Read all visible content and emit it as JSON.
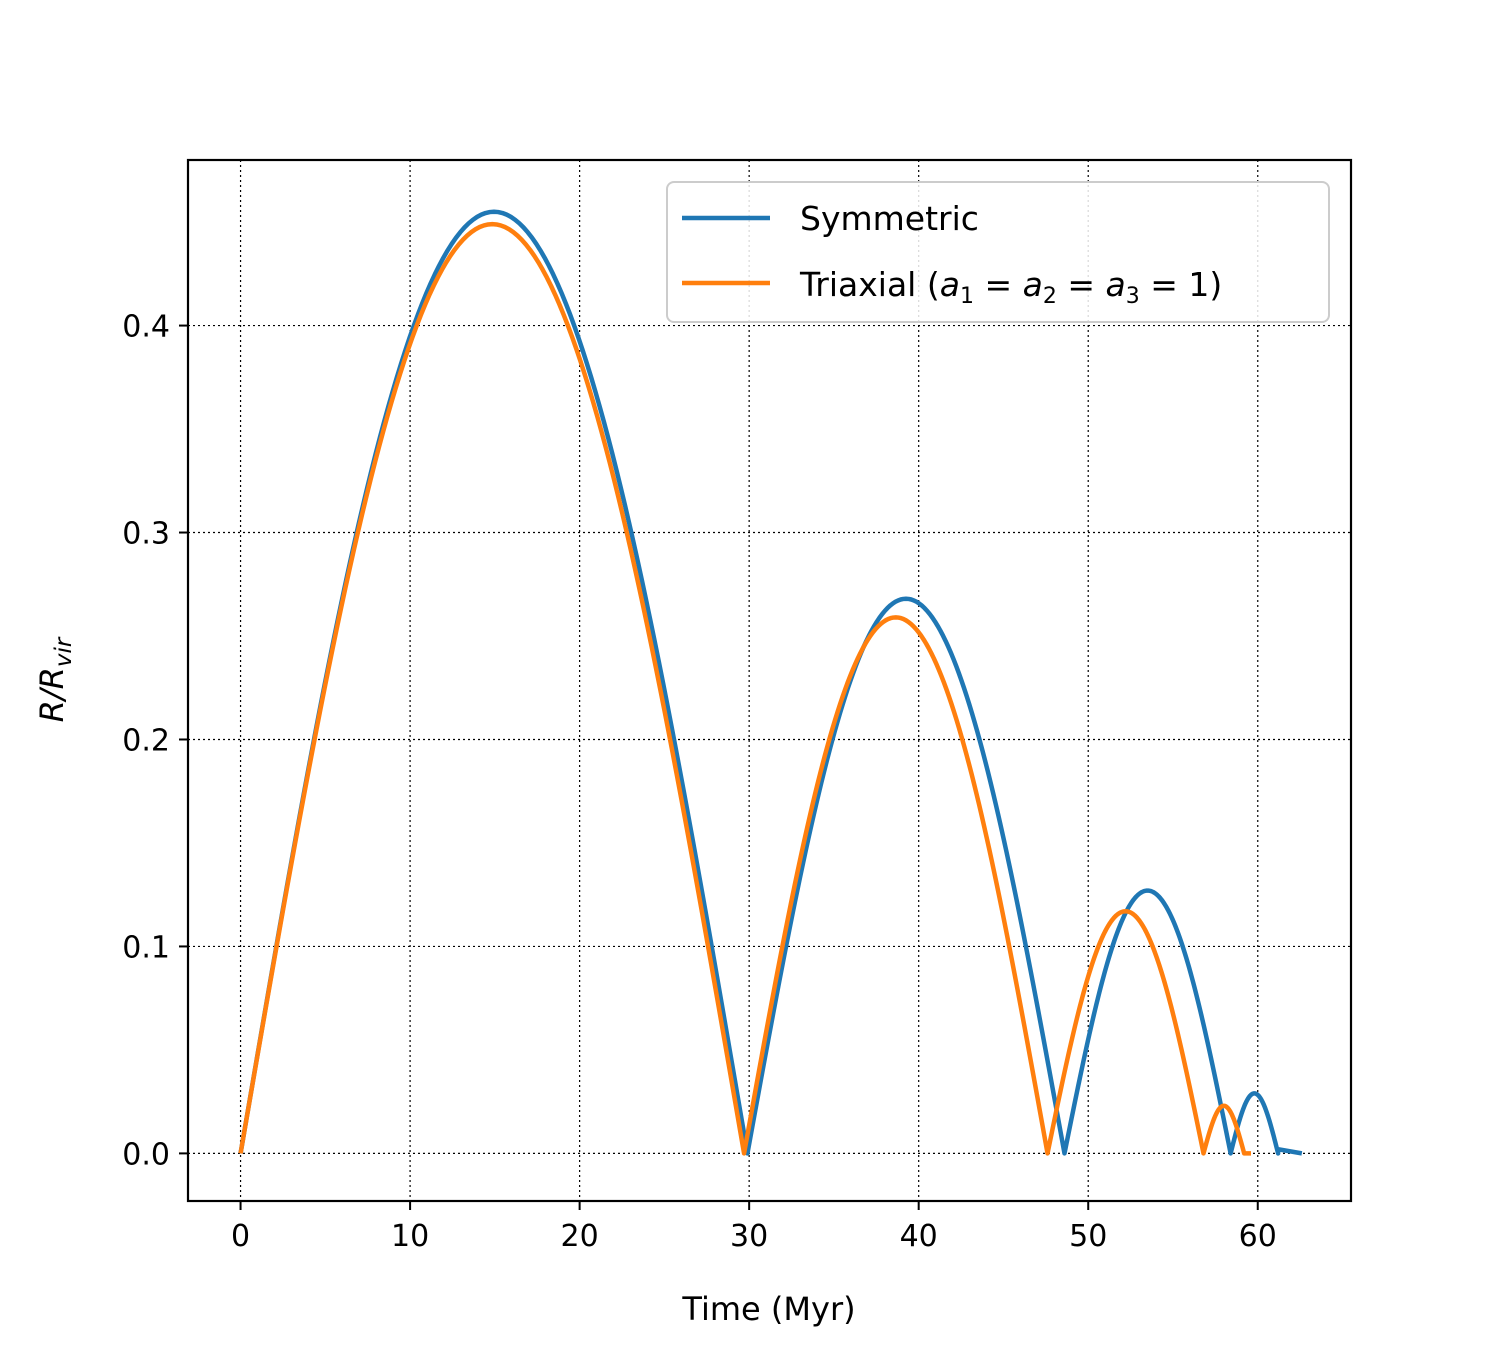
{
  "chart_data": {
    "type": "line",
    "title": "",
    "xlabel": "Time (Myr)",
    "ylabel": "R/R_vir",
    "xlim": [
      -3.1,
      65.5
    ],
    "ylim": [
      -0.023,
      0.48
    ],
    "xticks": [
      0,
      10,
      20,
      30,
      40,
      50,
      60
    ],
    "yticks": [
      0.0,
      0.1,
      0.2,
      0.3,
      0.4
    ],
    "xtick_labels": [
      "0",
      "10",
      "20",
      "30",
      "40",
      "50",
      "60"
    ],
    "ytick_labels": [
      "0.0",
      "0.1",
      "0.2",
      "0.3",
      "0.4"
    ],
    "grid": true,
    "legend_position": "top-right",
    "series": [
      {
        "name": "Symmetric",
        "color": "#1f77b4",
        "arcs": [
          {
            "start": 0.0,
            "end": 29.9,
            "peak": 0.455
          },
          {
            "start": 29.9,
            "end": 48.6,
            "peak": 0.268
          },
          {
            "start": 48.6,
            "end": 58.4,
            "peak": 0.127
          },
          {
            "start": 58.4,
            "end": 61.2,
            "peak": 0.029
          }
        ],
        "tail": [
          [
            61.2,
            0.002
          ],
          [
            62.6,
            0.0
          ]
        ]
      },
      {
        "name": "Triaxial (a_1 = a_2 = a_3 = 1)",
        "color": "#ff7f0e",
        "arcs": [
          {
            "start": 0.0,
            "end": 29.7,
            "peak": 0.449
          },
          {
            "start": 29.7,
            "end": 47.6,
            "peak": 0.259
          },
          {
            "start": 47.6,
            "end": 56.8,
            "peak": 0.117
          },
          {
            "start": 56.8,
            "end": 59.2,
            "peak": 0.023
          }
        ],
        "tail": [
          [
            59.2,
            0.0
          ],
          [
            59.6,
            0.0
          ]
        ]
      }
    ]
  }
}
